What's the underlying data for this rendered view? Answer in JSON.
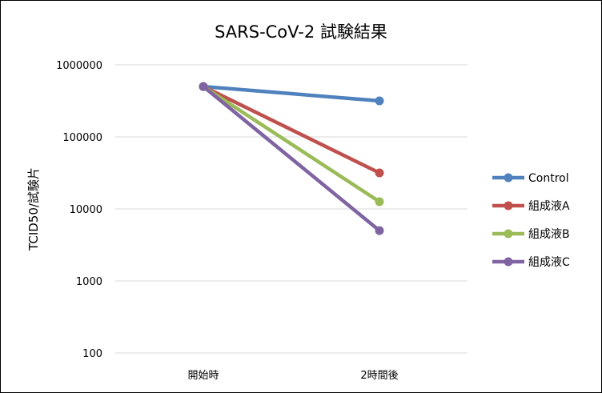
{
  "chart_data": {
    "type": "line",
    "title": "SARS-CoV-2 試験結果",
    "xlabel": "",
    "ylabel": "TCID50/試験片",
    "y_scale": "log",
    "ylim": [
      100,
      1000000
    ],
    "y_ticks": [
      "1000000",
      "100000",
      "10000",
      "1000",
      "100"
    ],
    "categories": [
      "開始時",
      "2時間後"
    ],
    "grid": "horizontal",
    "legend_position": "right",
    "series": [
      {
        "name": "Control",
        "color": "#4F81BD",
        "values": [
          500000,
          316000
        ]
      },
      {
        "name": "組成液A",
        "color": "#C0504D",
        "values": [
          500000,
          31600
        ]
      },
      {
        "name": "組成液B",
        "color": "#9BBB59",
        "values": [
          500000,
          12600
        ]
      },
      {
        "name": "組成液C",
        "color": "#8064A2",
        "values": [
          500000,
          5000
        ]
      }
    ]
  }
}
